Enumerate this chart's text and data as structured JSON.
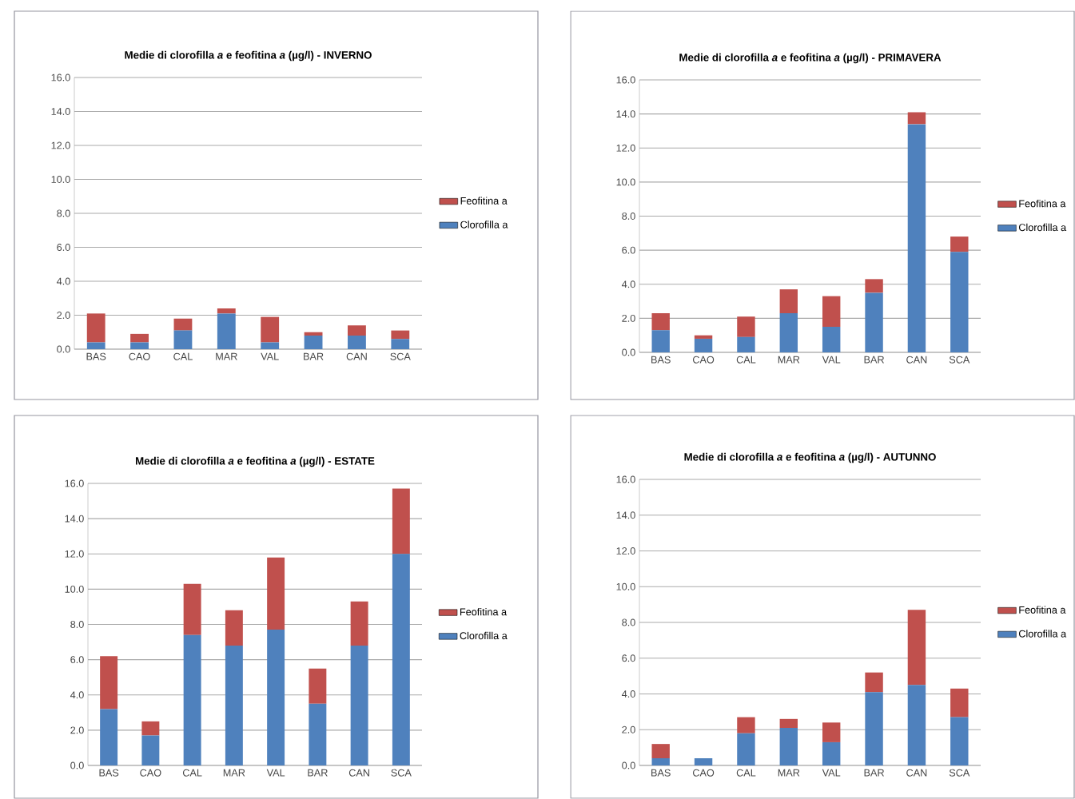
{
  "chart_data": [
    {
      "type": "bar",
      "title": "Medie di clorofilla *a* e feofitina *a* (µg/l) - INVERNO",
      "categories": [
        "BAS",
        "CAO",
        "CAL",
        "MAR",
        "VAL",
        "BAR",
        "CAN",
        "SCA"
      ],
      "stacked": true,
      "grid": "y",
      "legend": "right",
      "ylim": [
        0,
        16
      ],
      "yticks": [
        {
          "value": 0,
          "label": "0.0"
        },
        {
          "value": 2,
          "label": "2.0"
        },
        {
          "value": 4,
          "label": "4.0"
        },
        {
          "value": 6,
          "label": "6.0"
        },
        {
          "value": 8,
          "label": "8.0"
        },
        {
          "value": 10,
          "label": "10.0"
        },
        {
          "value": 12,
          "label": "12.0"
        },
        {
          "value": 14,
          "label": "14.0"
        },
        {
          "value": 16,
          "label": "16.0"
        }
      ],
      "series": [
        {
          "name": "Clorofilla a",
          "color": "#4f81bd",
          "values": [
            0.4,
            0.4,
            1.1,
            2.1,
            0.4,
            0.8,
            0.8,
            0.6
          ]
        },
        {
          "name": "Feofitina a",
          "color": "#c0504d",
          "values": [
            1.7,
            0.5,
            0.7,
            0.3,
            1.5,
            0.2,
            0.6,
            0.5
          ]
        }
      ]
    },
    {
      "type": "bar",
      "title": "Medie di clorofilla *a* e feofitina *a* (µg/l) - PRIMAVERA",
      "categories": [
        "BAS",
        "CAO",
        "CAL",
        "MAR",
        "VAL",
        "BAR",
        "CAN",
        "SCA"
      ],
      "stacked": true,
      "grid": "y",
      "legend": "right",
      "ylim": [
        0,
        16
      ],
      "yticks": [
        {
          "value": 0,
          "label": "0.0"
        },
        {
          "value": 2,
          "label": "2.0"
        },
        {
          "value": 4,
          "label": "4.0"
        },
        {
          "value": 6,
          "label": "6.0"
        },
        {
          "value": 8,
          "label": "8.0"
        },
        {
          "value": 10,
          "label": "10.0"
        },
        {
          "value": 12,
          "label": "12.0"
        },
        {
          "value": 14,
          "label": "14.0"
        },
        {
          "value": 16,
          "label": "16.0"
        }
      ],
      "series": [
        {
          "name": "Clorofilla a",
          "color": "#4f81bd",
          "values": [
            1.3,
            0.8,
            0.9,
            2.3,
            1.5,
            3.5,
            13.4,
            5.9
          ]
        },
        {
          "name": "Feofitina a",
          "color": "#c0504d",
          "values": [
            1.0,
            0.2,
            1.2,
            1.4,
            1.8,
            0.8,
            0.7,
            0.9
          ]
        }
      ]
    },
    {
      "type": "bar",
      "title": "Medie di clorofilla *a* e feofitina *a* (µg/l) - ESTATE",
      "categories": [
        "BAS",
        "CAO",
        "CAL",
        "MAR",
        "VAL",
        "BAR",
        "CAN",
        "SCA"
      ],
      "stacked": true,
      "grid": "y",
      "legend": "right",
      "ylim": [
        0,
        16
      ],
      "yticks": [
        {
          "value": 0,
          "label": "0.0"
        },
        {
          "value": 2,
          "label": "2.0"
        },
        {
          "value": 4,
          "label": "4.0"
        },
        {
          "value": 6,
          "label": "6.0"
        },
        {
          "value": 8,
          "label": "8.0"
        },
        {
          "value": 10,
          "label": "10.0"
        },
        {
          "value": 12,
          "label": "12.0"
        },
        {
          "value": 14,
          "label": "14.0"
        },
        {
          "value": 16,
          "label": "16.0"
        }
      ],
      "series": [
        {
          "name": "Clorofilla a",
          "color": "#4f81bd",
          "values": [
            3.2,
            1.7,
            7.4,
            6.8,
            7.7,
            3.5,
            6.8,
            12.0
          ]
        },
        {
          "name": "Feofitina a",
          "color": "#c0504d",
          "values": [
            3.0,
            0.8,
            2.9,
            2.0,
            4.1,
            2.0,
            2.5,
            3.7
          ]
        }
      ]
    },
    {
      "type": "bar",
      "title": "Medie di clorofilla *a* e feofitina *a* (µg/l) - AUTUNNO",
      "categories": [
        "BAS",
        "CAO",
        "CAL",
        "MAR",
        "VAL",
        "BAR",
        "CAN",
        "SCA"
      ],
      "stacked": true,
      "grid": "y",
      "legend": "right",
      "ylim": [
        0,
        16
      ],
      "yticks": [
        {
          "value": 0,
          "label": "0.0"
        },
        {
          "value": 2,
          "label": "2.0"
        },
        {
          "value": 4,
          "label": "4.0"
        },
        {
          "value": 6,
          "label": "6.0"
        },
        {
          "value": 8,
          "label": "8.0"
        },
        {
          "value": 10,
          "label": "10.0"
        },
        {
          "value": 12,
          "label": "12.0"
        },
        {
          "value": 14,
          "label": "14.0"
        },
        {
          "value": 16,
          "label": "16.0"
        }
      ],
      "series": [
        {
          "name": "Clorofilla a",
          "color": "#4f81bd",
          "values": [
            0.4,
            0.4,
            1.8,
            2.1,
            1.3,
            4.1,
            4.5,
            2.7
          ]
        },
        {
          "name": "Feofitina a",
          "color": "#c0504d",
          "values": [
            0.8,
            0.0,
            0.9,
            0.5,
            1.1,
            1.1,
            4.2,
            1.6
          ]
        }
      ]
    }
  ]
}
